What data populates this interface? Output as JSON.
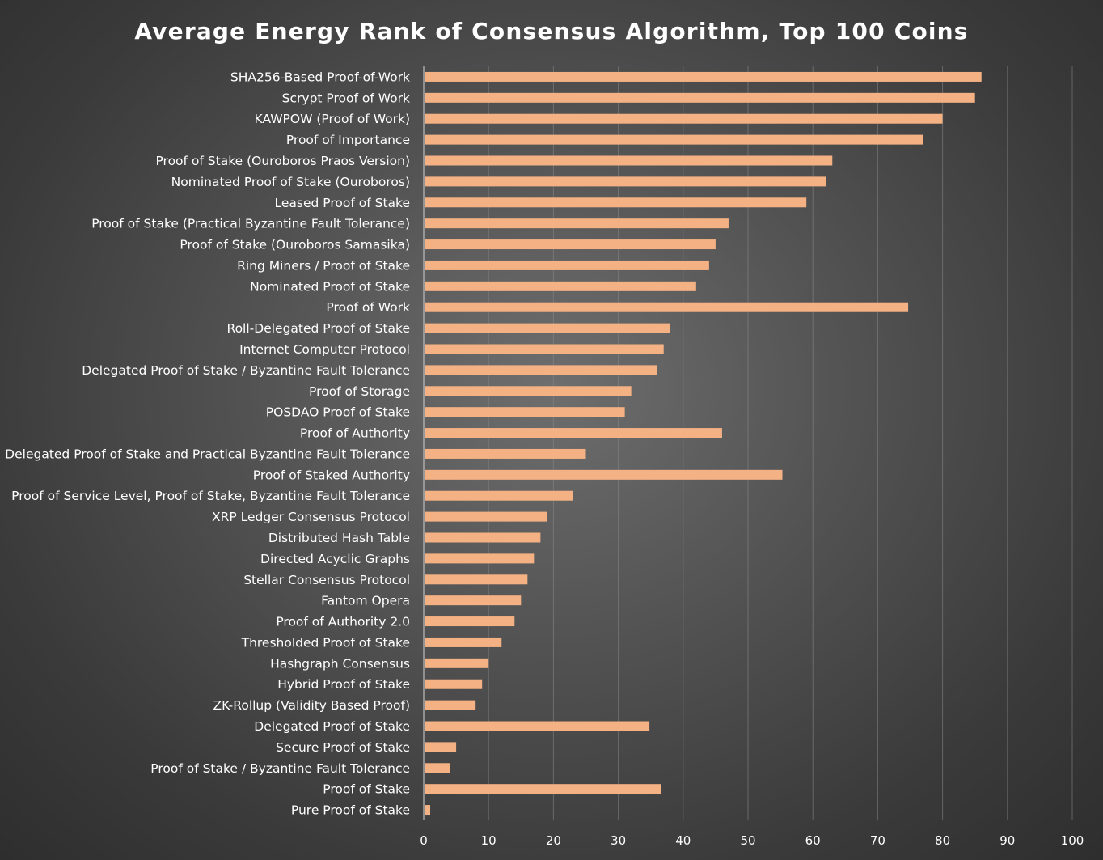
{
  "chart_data": {
    "type": "bar",
    "orientation": "horizontal",
    "title": "Average Energy Rank of Consensus Algorithm, Top 100 Coins",
    "xlabel": "",
    "ylabel": "",
    "xlim": [
      0,
      100
    ],
    "x_ticks": [
      0,
      10,
      20,
      30,
      40,
      50,
      60,
      70,
      80,
      90,
      100
    ],
    "grid": "vertical",
    "legend": "none",
    "bar_color": "#f4b183",
    "categories": [
      "SHA256-Based Proof-of-Work",
      "Scrypt Proof of Work",
      "KAWPOW (Proof of Work)",
      "Proof of Importance",
      "Proof of Stake (Ouroboros Praos Version)",
      "Nominated Proof of Stake (Ouroboros)",
      "Leased Proof of Stake",
      "Proof of Stake (Practical Byzantine Fault Tolerance)",
      "Proof of Stake (Ouroboros Samasika)",
      "Ring Miners / Proof of Stake",
      "Nominated Proof of Stake",
      "Proof of Work",
      "Roll-Delegated Proof of Stake",
      "Internet Computer Protocol",
      "Delegated Proof of Stake / Byzantine Fault Tolerance",
      "Proof of Storage",
      "POSDAO Proof of Stake",
      "Proof of Authority",
      "Delegated Proof of Stake and Practical Byzantine Fault Tolerance",
      "Proof of Staked Authority",
      "Proof of Service Level, Proof of Stake, Byzantine Fault Tolerance",
      "XRP Ledger Consensus Protocol",
      "Distributed Hash Table",
      "Directed Acyclic Graphs",
      "Stellar Consensus Protocol",
      "Fantom Opera",
      "Proof of Authority 2.0",
      "Thresholded Proof of Stake",
      "Hashgraph Consensus",
      "Hybrid Proof of Stake",
      "ZK-Rollup (Validity Based Proof)",
      "Delegated Proof of Stake",
      "Secure Proof of Stake",
      "Proof of Stake / Byzantine Fault Tolerance",
      "Proof of Stake",
      "Pure Proof of Stake"
    ],
    "values": [
      86,
      85,
      80,
      77,
      63,
      62,
      59,
      47,
      45,
      44,
      42,
      74.7,
      38,
      37,
      36,
      32,
      31,
      46,
      25,
      55.3,
      23,
      19,
      18,
      17,
      16,
      15,
      14,
      12,
      10,
      9,
      8,
      34.8,
      5,
      4,
      36.6,
      1
    ]
  }
}
